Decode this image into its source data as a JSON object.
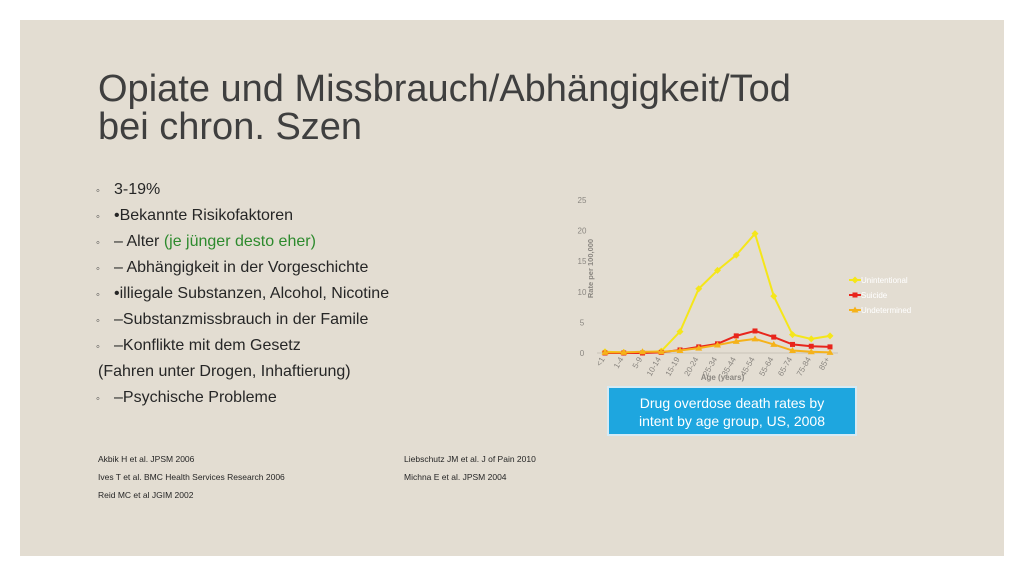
{
  "slide": {
    "title_line1": "Opiate und Missbrauch/Abhängigkeit/Tod",
    "title_line2": "bei chron. Szen",
    "bullets": [
      {
        "marker": "◦",
        "text": "3-19%"
      },
      {
        "marker": "◦",
        "text": "•Bekannte Risikofaktoren"
      },
      {
        "marker": "◦",
        "text": "– Alter ",
        "highlight": "(je jünger desto eher)"
      },
      {
        "marker": "◦",
        "text": "– Abhängigkeit in der Vorgeschichte"
      },
      {
        "marker": "◦",
        "text": "•illiegale Substanzen, Alcohol, Nicotine"
      },
      {
        "marker": "◦",
        "text": "–Substanzmissbrauch in der Famile"
      },
      {
        "marker": "◦",
        "text": "–Konflikte mit dem Gesetz"
      },
      {
        "marker": "",
        "text": "(Fahren unter Drogen, Inhaftierung)"
      },
      {
        "marker": "◦",
        "text": "–Psychische Probleme"
      }
    ],
    "references_left": [
      "Akbik H et al. JPSM 2006",
      "Ives T et al. BMC Health Services Research 2006",
      "Reid MC et al JGIM 2002"
    ],
    "references_right": [
      "Liebschutz JM et al. J of Pain 2010",
      "Michna E et al. JPSM 2004"
    ],
    "callout_line1": "Drug overdose death rates by",
    "callout_line2": "intent by age group, US, 2008",
    "colors": {
      "background": "#e3ddd2",
      "accent_green": "#2d8a2d",
      "callout": "#1ea6df"
    }
  },
  "chart_data": {
    "type": "line",
    "categories": [
      "<1",
      "1-4",
      "5-9",
      "10-14",
      "15-19",
      "20-24",
      "25-34",
      "35-44",
      "45-54",
      "55-64",
      "65-74",
      "75-84",
      "85+"
    ],
    "series": [
      {
        "name": "Unintentional",
        "color": "#f5e61a",
        "marker": "diamond",
        "values": [
          0.2,
          0.1,
          0.1,
          0.3,
          3.5,
          10.5,
          13.5,
          16,
          19.5,
          9.3,
          3,
          2.3,
          2.8
        ]
      },
      {
        "name": "Suicide",
        "color": "#e8251c",
        "marker": "square",
        "values": [
          0,
          0,
          0,
          0.1,
          0.5,
          1.0,
          1.5,
          2.8,
          3.6,
          2.6,
          1.4,
          1.1,
          1.0
        ]
      },
      {
        "name": "Undetermined",
        "color": "#f5b21a",
        "marker": "triangle",
        "values": [
          0.1,
          0.1,
          0.2,
          0.2,
          0.4,
          0.8,
          1.3,
          1.9,
          2.3,
          1.4,
          0.4,
          0.2,
          0.1
        ]
      }
    ],
    "xlabel": "Age (years)",
    "ylabel": "Rate per 100,000",
    "ylim": [
      0,
      25
    ],
    "yticks": [
      0,
      5,
      10,
      15,
      20,
      25
    ],
    "grid": false,
    "legend": "right"
  }
}
